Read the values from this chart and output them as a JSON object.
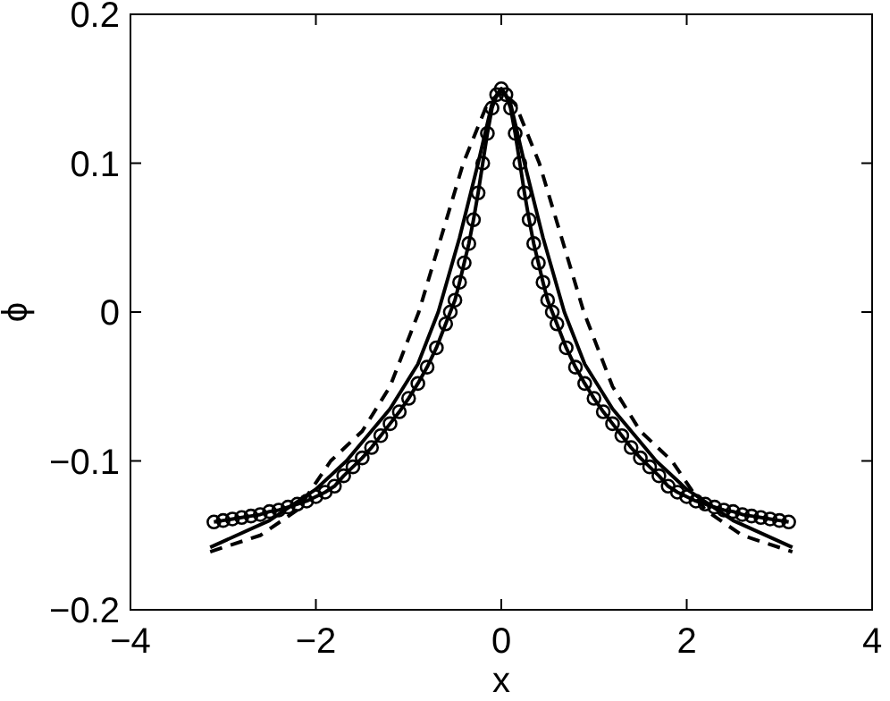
{
  "chart_data": {
    "type": "line",
    "xlabel": "x",
    "ylabel": "ϕ",
    "xlim": [
      -4,
      4
    ],
    "xticks": [
      -4,
      -2,
      0,
      2,
      4
    ],
    "ylim": [
      -0.2,
      0.2
    ],
    "yticks": [
      -0.2,
      -0.1,
      0,
      0.1,
      0.2
    ],
    "grid": false,
    "series": [
      {
        "color": "#000000",
        "line_style": "dashed",
        "marker": "none",
        "x": [
          -3.14,
          -2.6,
          -2.2,
          -1.84,
          -1.5,
          -1.2,
          -0.89,
          -0.65,
          -0.41,
          -0.15,
          0,
          0.15,
          0.41,
          0.65,
          0.89,
          1.2,
          1.5,
          1.84,
          2.2,
          2.6,
          3.14
        ],
        "values": [
          -0.161,
          -0.15,
          -0.133,
          -0.1,
          -0.08,
          -0.05,
          0,
          0.05,
          0.1,
          0.14,
          0.148,
          0.14,
          0.1,
          0.05,
          0,
          -0.05,
          -0.08,
          -0.1,
          -0.133,
          -0.15,
          -0.161
        ]
      },
      {
        "color": "#000000",
        "line_style": "solid",
        "marker": "none",
        "x": [
          -3.14,
          -2.5,
          -2,
          -1.67,
          -1.2,
          -0.9,
          -0.68,
          -0.45,
          -0.25,
          -0.1,
          0,
          0.1,
          0.25,
          0.45,
          0.68,
          0.9,
          1.2,
          1.67,
          2,
          2.5,
          3.14
        ],
        "values": [
          -0.158,
          -0.14,
          -0.119,
          -0.1,
          -0.065,
          -0.035,
          0,
          0.05,
          0.1,
          0.14,
          0.15,
          0.14,
          0.1,
          0.05,
          0,
          -0.035,
          -0.065,
          -0.1,
          -0.119,
          -0.14,
          -0.158
        ]
      },
      {
        "color": "#000000",
        "line_style": "solid",
        "marker": "circle",
        "x": [
          -3.1,
          -3.0,
          -2.9,
          -2.8,
          -2.7,
          -2.6,
          -2.5,
          -2.4,
          -2.3,
          -2.2,
          -2.1,
          -2.0,
          -1.9,
          -1.8,
          -1.7,
          -1.6,
          -1.5,
          -1.4,
          -1.3,
          -1.2,
          -1.1,
          -1.0,
          -0.9,
          -0.8,
          -0.7,
          -0.6,
          -0.55,
          -0.5,
          -0.45,
          -0.4,
          -0.35,
          -0.3,
          -0.25,
          -0.2,
          -0.15,
          -0.1,
          -0.05,
          0,
          0.05,
          0.1,
          0.15,
          0.2,
          0.25,
          0.3,
          0.35,
          0.4,
          0.45,
          0.5,
          0.55,
          0.6,
          0.7,
          0.8,
          0.9,
          1.0,
          1.1,
          1.2,
          1.3,
          1.4,
          1.5,
          1.6,
          1.7,
          1.8,
          1.9,
          2.0,
          2.1,
          2.2,
          2.3,
          2.4,
          2.5,
          2.6,
          2.7,
          2.8,
          2.9,
          3.0,
          3.1
        ],
        "values": [
          -0.141,
          -0.14,
          -0.139,
          -0.138,
          -0.137,
          -0.136,
          -0.134,
          -0.133,
          -0.131,
          -0.129,
          -0.127,
          -0.124,
          -0.121,
          -0.117,
          -0.11,
          -0.104,
          -0.098,
          -0.091,
          -0.083,
          -0.075,
          -0.067,
          -0.058,
          -0.048,
          -0.037,
          -0.024,
          -0.008,
          0,
          0.008,
          0.02,
          0.033,
          0.046,
          0.062,
          0.08,
          0.1,
          0.12,
          0.137,
          0.146,
          0.15,
          0.146,
          0.137,
          0.12,
          0.1,
          0.08,
          0.062,
          0.046,
          0.033,
          0.02,
          0.008,
          0,
          -0.008,
          -0.024,
          -0.037,
          -0.048,
          -0.058,
          -0.067,
          -0.075,
          -0.083,
          -0.091,
          -0.098,
          -0.104,
          -0.11,
          -0.117,
          -0.121,
          -0.124,
          -0.127,
          -0.129,
          -0.131,
          -0.133,
          -0.134,
          -0.136,
          -0.137,
          -0.138,
          -0.139,
          -0.14,
          -0.141
        ]
      }
    ]
  }
}
